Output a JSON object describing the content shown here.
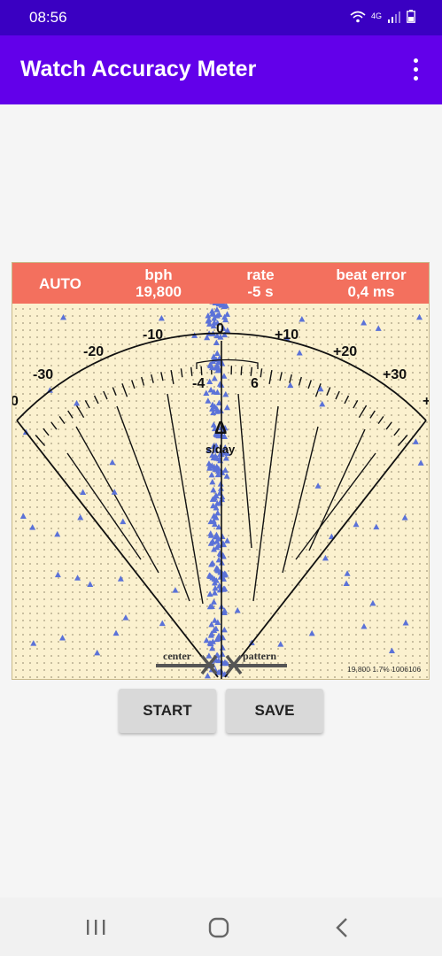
{
  "status_bar": {
    "time": "08:56",
    "icons": [
      "wifi-icon",
      "4g-lte-icon",
      "signal-icon",
      "battery-icon"
    ],
    "network_label": "4G"
  },
  "app_bar": {
    "title": "Watch Accuracy Meter",
    "menu_icon": "overflow-menu-icon"
  },
  "meter": {
    "header": {
      "mode": "AUTO",
      "bph_label": "bph",
      "bph_value": "19,800",
      "rate_label": "rate",
      "rate_value": "-5 s",
      "beat_error_label": "beat error",
      "beat_error_value": "0,4 ms"
    },
    "scale_labels": [
      "-30",
      "-20",
      "-10",
      "0",
      "+10",
      "+20",
      "+30"
    ],
    "edge_left": "0",
    "edge_right": "+",
    "rate_range_min": "-4",
    "rate_range_max": "6",
    "delta_symbol": "Δ",
    "unit": "s/day",
    "center_label": "center",
    "pattern_label": "pattern",
    "footer": "19,800 1.7% 1006106",
    "colors": {
      "background": "#fbf1cf",
      "header": "#f3705e",
      "points": "#5b72d8",
      "points_in_header": "#8e3a78"
    }
  },
  "buttons": {
    "start": "START",
    "save": "SAVE"
  },
  "nav_bar": {
    "recents_icon": "recents-icon",
    "home_icon": "home-icon",
    "back_icon": "back-icon"
  }
}
